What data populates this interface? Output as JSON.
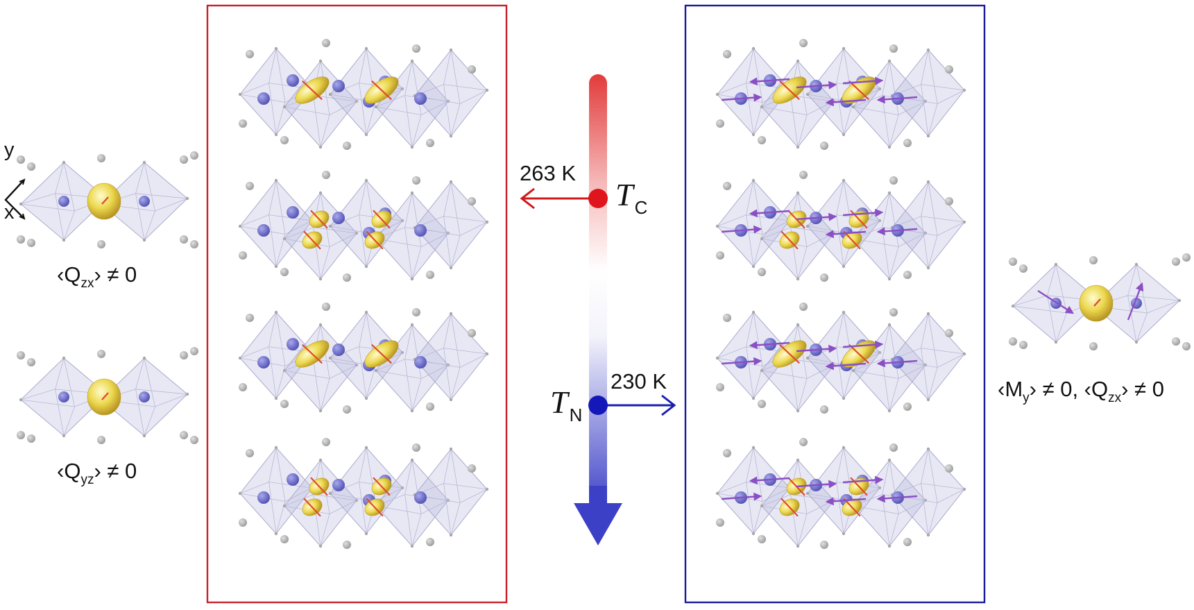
{
  "left_column": {
    "axis_y": "y",
    "axis_x": "x",
    "label_top": {
      "pre": "‹Q",
      "sub": "zx",
      "post": "› ≠ 0"
    },
    "label_bottom": {
      "pre": "‹Q",
      "sub": "yz",
      "post": "› ≠ 0"
    }
  },
  "right_column": {
    "label": {
      "a_pre": "‹M",
      "a_sub": "y",
      "a_post": "› ≠ 0, ‹Q",
      "b_sub": "zx",
      "b_post": "› ≠ 0"
    }
  },
  "temperature_axis": {
    "tc_value": "263 K",
    "tc_symbol": "T",
    "tc_sub": "C",
    "tn_value": "230 K",
    "tn_symbol": "T",
    "tn_sub": "N",
    "hot_color": "#e23b3b",
    "cold_color": "#3c40c6"
  },
  "panels": {
    "left_frame_color": "#c8202a",
    "right_frame_color": "#1a1a9c",
    "layers": 4
  },
  "colors": {
    "octahedron": "#b9b9dc",
    "atom_blue": "#6c6cc8",
    "atom_grey": "#b4b4b4",
    "orbital": "#e6d24a",
    "moment_arrow": "#8a4fc4",
    "orbital_tick": "#e04a2c"
  }
}
